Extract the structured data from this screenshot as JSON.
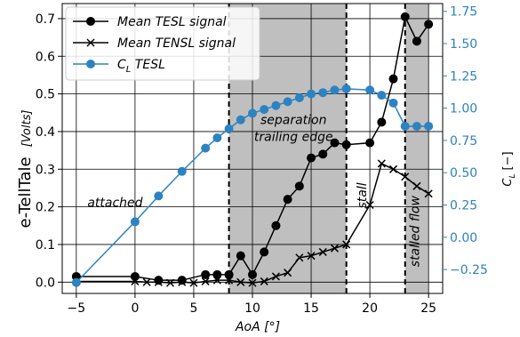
{
  "chart_data": {
    "type": "line",
    "title": "",
    "xlabel": "AoA [°]",
    "ylabel_left": "e-TellTale",
    "ylabel_left_unit": "[Volts]",
    "ylabel_right": "C",
    "ylabel_right_sub": "L",
    "ylabel_right_unit": "[−]",
    "xlim": [
      -6.2,
      26.2
    ],
    "ylim_left": [
      -0.03,
      0.74
    ],
    "ylim_right": [
      -0.435,
      1.81
    ],
    "x_ticks": [
      -5,
      0,
      5,
      10,
      15,
      20,
      25
    ],
    "x_tick_labels": [
      "−5",
      "0",
      "5",
      "10",
      "15",
      "20",
      "25"
    ],
    "y_left_ticks": [
      0.0,
      0.1,
      0.2,
      0.3,
      0.4,
      0.5,
      0.6,
      0.7
    ],
    "y_left_tick_labels": [
      "0.0",
      "0.1",
      "0.2",
      "0.3",
      "0.4",
      "0.5",
      "0.6",
      "0.7"
    ],
    "y_right_ticks": [
      -0.25,
      0.0,
      0.25,
      0.5,
      0.75,
      1.0,
      1.25,
      1.5,
      1.75
    ],
    "y_right_tick_labels": [
      "−0.25",
      "0.00",
      "0.25",
      "0.50",
      "0.75",
      "1.00",
      "1.25",
      "1.50",
      "1.75"
    ],
    "grid": true,
    "legend_position": "top-left",
    "shaded_regions": [
      {
        "x0": 8,
        "x1": 18
      },
      {
        "x0": 23,
        "x1": 25
      }
    ],
    "vertical_lines": [
      8,
      18,
      23
    ],
    "annotations": [
      {
        "text": "attached",
        "x": -1.7,
        "y": 0.2,
        "rotation": 0
      },
      {
        "text": "separation",
        "x": 13.5,
        "y": 0.42,
        "rotation": 0
      },
      {
        "text": "trailing edge",
        "x": 13.5,
        "y": 0.375,
        "rotation": 0
      },
      {
        "text": "stall",
        "x": 19.7,
        "y": 0.23,
        "rotation": -90
      },
      {
        "text": "stalled flow",
        "x": 24.2,
        "y": 0.135,
        "rotation": -90
      }
    ],
    "series": [
      {
        "name": "Mean TESL signal",
        "axis": "left",
        "marker": "circle",
        "color": "#000000",
        "x": [
          -5,
          0,
          2,
          4,
          6,
          7,
          8,
          9,
          10,
          11,
          12,
          13,
          14,
          15,
          16,
          17,
          18,
          20,
          21,
          22,
          23,
          24,
          25
        ],
        "y": [
          0.015,
          0.015,
          0.005,
          0.005,
          0.02,
          0.02,
          0.02,
          0.07,
          0.02,
          0.08,
          0.15,
          0.22,
          0.255,
          0.33,
          0.34,
          0.37,
          0.365,
          0.37,
          0.425,
          0.54,
          0.705,
          0.64,
          0.685
        ]
      },
      {
        "name": "Mean TENSL signal",
        "axis": "left",
        "marker": "x",
        "color": "#000000",
        "x": [
          -5,
          0,
          1,
          2,
          3,
          4,
          5,
          6,
          7,
          8,
          9,
          10,
          11,
          12,
          13,
          14,
          15,
          16,
          17,
          18,
          20,
          21,
          22,
          23,
          24,
          25
        ],
        "y": [
          0.002,
          0.002,
          0.0,
          0.0,
          -0.002,
          0.0,
          -0.002,
          0.002,
          0.005,
          0.005,
          0.0,
          -0.002,
          0.002,
          0.015,
          0.025,
          0.065,
          0.07,
          0.08,
          0.09,
          0.1,
          0.205,
          0.315,
          0.3,
          0.28,
          0.255,
          0.235
        ]
      },
      {
        "name": "C_L TESL",
        "name_main": "C",
        "name_sub": "L",
        "name_rest": " TESL",
        "axis": "right",
        "marker": "circle",
        "color": "#2d83c1",
        "x": [
          -5,
          0,
          2,
          4,
          6,
          7,
          8,
          9,
          10,
          11,
          12,
          13,
          14,
          15,
          16,
          17,
          18,
          20,
          21,
          22,
          23,
          24,
          25
        ],
        "y": [
          -0.35,
          0.12,
          0.32,
          0.51,
          0.69,
          0.77,
          0.84,
          0.91,
          0.96,
          0.99,
          1.02,
          1.05,
          1.08,
          1.11,
          1.12,
          1.14,
          1.15,
          1.14,
          1.1,
          1.04,
          0.86,
          0.86,
          0.86
        ]
      }
    ]
  }
}
